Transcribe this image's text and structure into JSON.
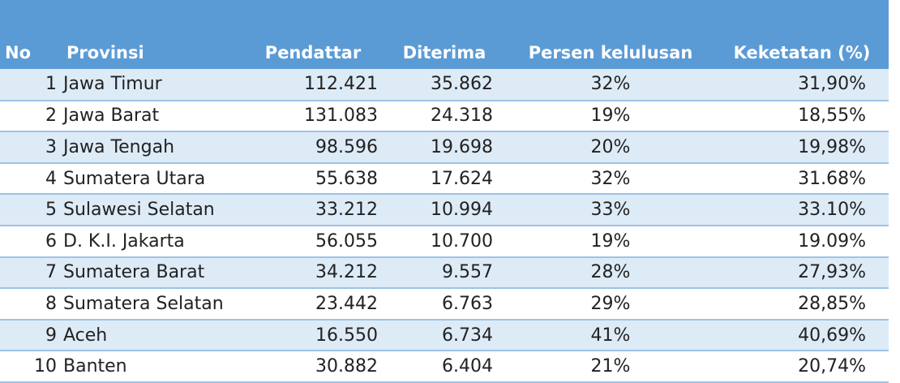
{
  "headers": {
    "no": "No",
    "provinsi": "Provinsi",
    "pendaftar": "Pendattar",
    "diterima": "Diterima",
    "persen": "Persen kelulusan",
    "keketatan": "Keketatan (%)"
  },
  "rows": [
    {
      "no": "1",
      "provinsi": "Jawa Timur",
      "pendaftar": "112.421",
      "diterima": "35.862",
      "persen": "32%",
      "keketatan": "31,90%"
    },
    {
      "no": "2",
      "provinsi": "Jawa Barat",
      "pendaftar": "131.083",
      "diterima": "24.318",
      "persen": "19%",
      "keketatan": "18,55%"
    },
    {
      "no": "3",
      "provinsi": "Jawa Tengah",
      "pendaftar": "98.596",
      "diterima": "19.698",
      "persen": "20%",
      "keketatan": "19,98%"
    },
    {
      "no": "4",
      "provinsi": "Sumatera Utara",
      "pendaftar": "55.638",
      "diterima": "17.624",
      "persen": "32%",
      "keketatan": "31.68%"
    },
    {
      "no": "5",
      "provinsi": "Sulawesi Selatan",
      "pendaftar": "33.212",
      "diterima": "10.994",
      "persen": "33%",
      "keketatan": "33.10%"
    },
    {
      "no": "6",
      "provinsi": "D. K.I. Jakarta",
      "pendaftar": "56.055",
      "diterima": "10.700",
      "persen": "19%",
      "keketatan": "19.09%"
    },
    {
      "no": "7",
      "provinsi": "Sumatera Barat",
      "pendaftar": "34.212",
      "diterima": "9.557",
      "persen": "28%",
      "keketatan": "27,93%"
    },
    {
      "no": "8",
      "provinsi": "Sumatera Selatan",
      "pendaftar": "23.442",
      "diterima": "6.763",
      "persen": "29%",
      "keketatan": "28,85%"
    },
    {
      "no": "9",
      "provinsi": "Aceh",
      "pendaftar": "16.550",
      "diterima": "6.734",
      "persen": "41%",
      "keketatan": "40,69%"
    },
    {
      "no": "10",
      "provinsi": "Banten",
      "pendaftar": "30.882",
      "diterima": "6.404",
      "persen": "21%",
      "keketatan": "20,74%"
    }
  ],
  "colors": {
    "header_bg": "#5b9bd5",
    "band_row": "#ddebf7",
    "row_border": "#9dc3e6"
  }
}
